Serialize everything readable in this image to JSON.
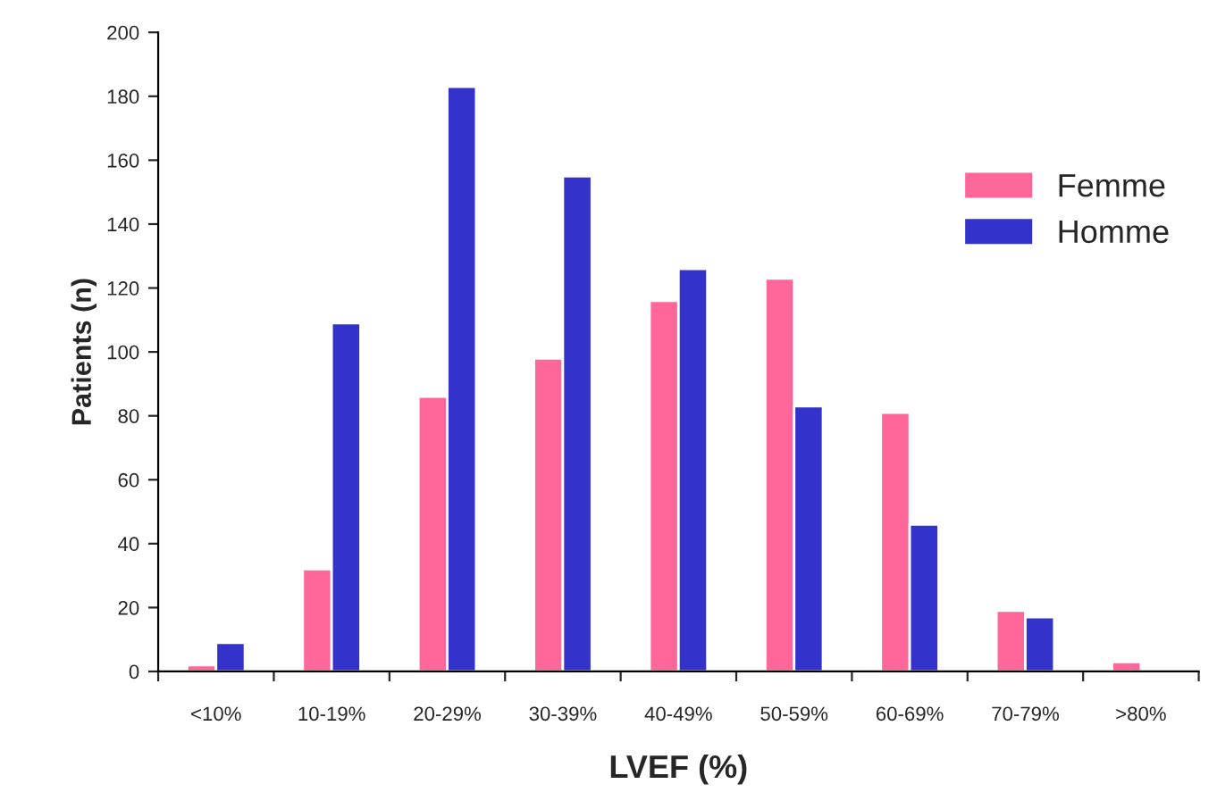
{
  "chart_data": {
    "type": "bar",
    "xlabel": "LVEF (%)",
    "ylabel": "Patients (n)",
    "categories": [
      "<10%",
      "10-19%",
      "20-29%",
      "30-39%",
      "40-49%",
      "50-59%",
      "60-69%",
      "70-79%",
      ">80%"
    ],
    "series": [
      {
        "name": "Femme",
        "color": "#ff6699",
        "values": [
          2,
          32,
          86,
          98,
          116,
          123,
          81,
          19,
          3
        ]
      },
      {
        "name": "Homme",
        "color": "#3333cc",
        "values": [
          9,
          109,
          183,
          155,
          126,
          83,
          46,
          17,
          null
        ]
      }
    ],
    "ylim": [
      0,
      200
    ],
    "yticks": [
      0,
      20,
      40,
      60,
      80,
      100,
      120,
      140,
      160,
      180,
      200
    ],
    "grid": false,
    "legend": "right"
  }
}
